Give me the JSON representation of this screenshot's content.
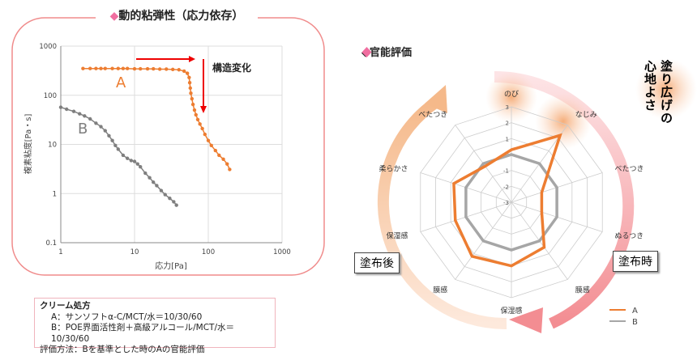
{
  "chart_data": [
    {
      "type": "line",
      "title": "◆動的粘弾性（応力依存）",
      "xlabel": "応力[Pa]",
      "ylabel": "複素粘度[Pa・s]",
      "xscale": "log",
      "yscale": "log",
      "xlim": [
        1,
        1000
      ],
      "ylim": [
        0.1,
        1000
      ],
      "xticks": [
        "1",
        "10",
        "100",
        "1000"
      ],
      "yticks": [
        "0.1",
        "1",
        "10",
        "100",
        "1000"
      ],
      "grid": true,
      "annotation": "構造変化",
      "series": [
        {
          "name": "A",
          "color": "#ed7d31",
          "x": [
            2,
            2.5,
            3,
            3.5,
            4,
            5,
            6,
            7,
            8,
            10,
            12,
            15,
            18,
            22,
            27,
            33,
            40,
            47,
            52,
            55,
            56,
            57,
            58,
            60,
            62,
            65,
            68,
            72,
            77,
            83,
            90,
            100,
            110,
            125,
            140,
            160,
            180,
            195
          ],
          "y": [
            350,
            350,
            350,
            350,
            350,
            350,
            350,
            350,
            350,
            345,
            345,
            345,
            345,
            340,
            340,
            335,
            330,
            310,
            280,
            230,
            180,
            140,
            110,
            85,
            65,
            50,
            40,
            32,
            26,
            21,
            16,
            12,
            9.5,
            7.5,
            6,
            5,
            4,
            3.1
          ]
        },
        {
          "name": "B",
          "color": "#7f7f7f",
          "x": [
            1,
            1.2,
            1.5,
            1.8,
            2.1,
            2.5,
            3,
            3.5,
            4,
            4.5,
            5,
            5.5,
            6,
            7,
            8,
            9,
            10,
            11,
            12,
            14,
            16,
            18,
            20,
            23,
            26,
            30,
            34,
            37
          ],
          "y": [
            57,
            52,
            47,
            42,
            38,
            33,
            27,
            23,
            19,
            15,
            12,
            9.5,
            8,
            6,
            5.2,
            4.7,
            4.5,
            4,
            3.5,
            2.6,
            2.1,
            1.7,
            1.45,
            1.15,
            0.95,
            0.8,
            0.68,
            0.58
          ]
        }
      ]
    },
    {
      "type": "radar",
      "title": "◆官能評価",
      "rlim": [
        -3,
        3
      ],
      "rticks": [
        "3",
        "2",
        "1",
        "0",
        "-1",
        "-2",
        "-3"
      ],
      "categories": [
        "のび",
        "なじみ",
        "べたつき",
        "ぬるつき",
        "膜感",
        "保湿感",
        "膜感",
        "保湿感",
        "柔らかさ",
        "べたつき"
      ],
      "series": [
        {
          "name": "A",
          "color": "#ed7d31",
          "values": [
            0.3,
            2.2,
            -1.0,
            -1.0,
            0.5,
            1.0,
            1.2,
            0.7,
            0.8,
            -0.2
          ]
        },
        {
          "name": "B",
          "color": "#a6a6a6",
          "values": [
            0,
            0,
            0,
            0,
            0,
            0,
            0,
            0,
            0,
            0
          ]
        }
      ],
      "labels": {
        "after": "塗布後",
        "during": "塗布時",
        "highlight": "塗り広げの心地よさ"
      },
      "legend": "bottom-right"
    }
  ],
  "note": {
    "heading": "クリーム処方",
    "line_a": "A：サンソフトα-C/MCT/水＝10/30/60",
    "line_b": "B：POE界面活性剤＋高級アルコール/MCT/水＝10/30/60",
    "method": "評価方法：Bを基準とした時のAの官能評価"
  },
  "colors": {
    "accent": "#f06ea0",
    "frame": "#f08c8c"
  }
}
